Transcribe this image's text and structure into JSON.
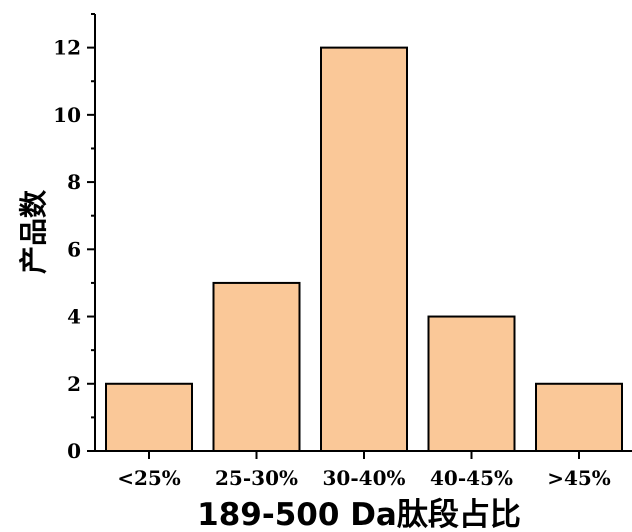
{
  "chart_data": {
    "type": "bar",
    "categories": [
      "<25%",
      "25-30%",
      "30-40%",
      "40-45%",
      ">45%"
    ],
    "values": [
      2,
      5,
      12,
      4,
      2
    ],
    "xlabel": "189-500 Da肽段占比",
    "ylabel": "产品数",
    "ylim": [
      0,
      13
    ],
    "yticks": [
      0,
      2,
      4,
      6,
      8,
      10,
      12
    ],
    "grid": false,
    "bar_color": "#fac898",
    "edge_color": "#000000"
  }
}
